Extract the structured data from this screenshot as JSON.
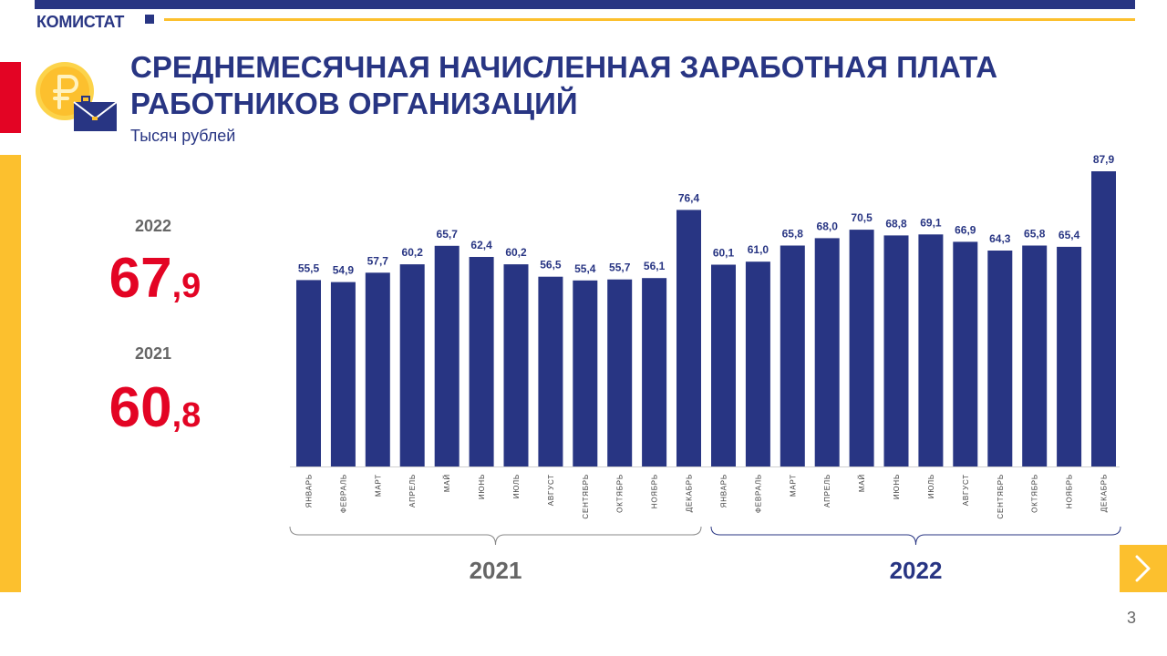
{
  "header": {
    "brand": "КОМИСТАТ",
    "title_line1": "СРЕДНЕМЕСЯЧНАЯ НАЧИСЛЕННАЯ ЗАРАБОТНАЯ ПЛАТА",
    "title_line2": "РАБОТНИКОВ ОРГАНИЗАЦИЙ",
    "subtitle": "Тысяч рублей"
  },
  "summary": [
    {
      "year": "2022",
      "int": "67",
      "dec": ",9"
    },
    {
      "year": "2021",
      "int": "60",
      "dec": ",8"
    }
  ],
  "colors": {
    "navy": "#283583",
    "red": "#e30424",
    "yellow": "#fcc02e",
    "gray": "#666666"
  },
  "icons": {
    "logo": "ruble-coin-briefcase-icon",
    "next": "chevron-right-icon"
  },
  "page_number": "3",
  "chart_data": {
    "type": "bar",
    "categories": [
      "ЯНВАРЬ",
      "ФЕВРАЛЬ",
      "МАРТ",
      "АПРЕЛЬ",
      "МАЙ",
      "ИЮНЬ",
      "ИЮЛЬ",
      "АВГУСТ",
      "СЕНТЯБРЬ",
      "ОКТЯБРЬ",
      "НОЯБРЬ",
      "ДЕКАБРЬ",
      "ЯНВАРЬ",
      "ФЕВРАЛЬ",
      "МАРТ",
      "АПРЕЛЬ",
      "МАЙ",
      "ИЮНЬ",
      "ИЮЛЬ",
      "АВГУСТ",
      "СЕНТЯБРЬ",
      "ОКТЯБРЬ",
      "НОЯБРЬ",
      "ДЕКАБРЬ"
    ],
    "values": [
      55.5,
      54.9,
      57.7,
      60.2,
      65.7,
      62.4,
      60.2,
      56.5,
      55.4,
      55.7,
      56.1,
      76.4,
      60.1,
      61.0,
      65.8,
      68.0,
      70.5,
      68.8,
      69.1,
      66.9,
      64.3,
      65.8,
      65.4,
      87.9
    ],
    "value_labels": [
      "55,5",
      "54,9",
      "57,7",
      "60,2",
      "65,7",
      "62,4",
      "60,2",
      "56,5",
      "55,4",
      "55,7",
      "56,1",
      "76,4",
      "60,1",
      "61,0",
      "65,8",
      "68,0",
      "70,5",
      "68,8",
      "69,1",
      "66,9",
      "64,3",
      "65,8",
      "65,4",
      "87,9"
    ],
    "groups": [
      {
        "label": "2021",
        "from": 0,
        "to": 11
      },
      {
        "label": "2022",
        "from": 12,
        "to": 23
      }
    ],
    "ylim": [
      0,
      87.9
    ],
    "grid": false,
    "legend": "none"
  }
}
